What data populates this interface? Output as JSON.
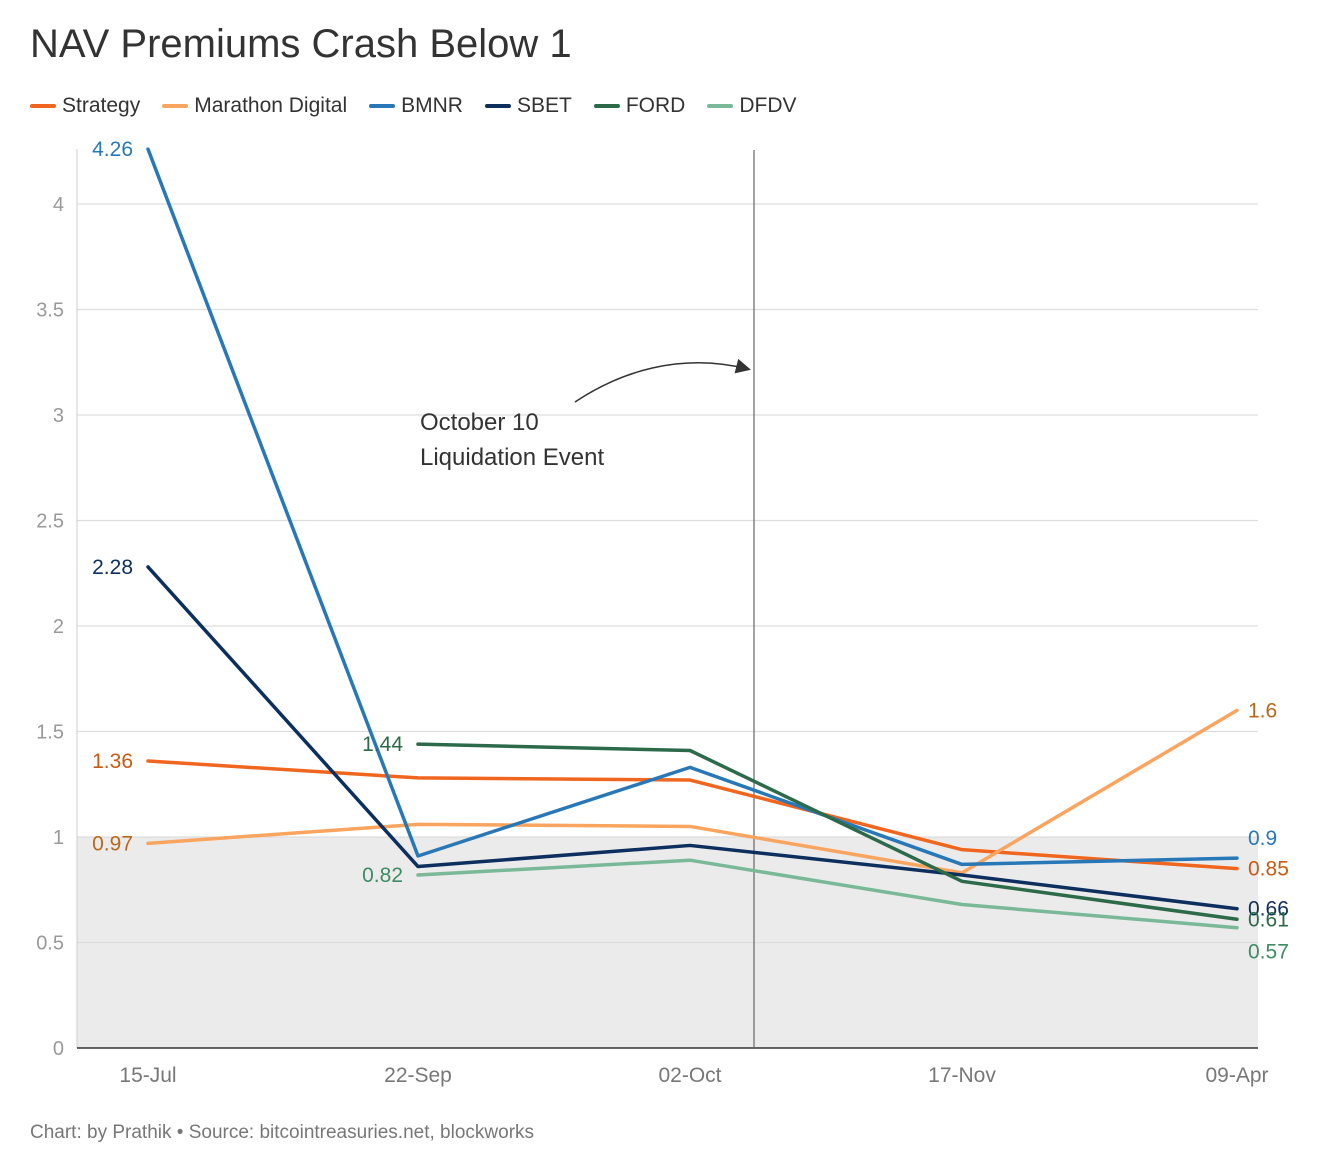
{
  "chart_data": {
    "type": "line",
    "title": "NAV Premiums Crash Below 1",
    "categories": [
      "15-Jul",
      "22-Sep",
      "02-Oct",
      "17-Nov",
      "09-Apr"
    ],
    "ylim": [
      0,
      4.26
    ],
    "yticks": [
      "0",
      "0.5",
      "1",
      "1.5",
      "2",
      "2.5",
      "3",
      "3.5",
      "4"
    ],
    "series": [
      {
        "name": "Strategy",
        "color": "#f0661f",
        "values": [
          1.36,
          1.28,
          1.27,
          0.94,
          0.85
        ],
        "labels": [
          "1.36",
          null,
          null,
          null,
          "0.85"
        ],
        "labelColor": "#c85a13"
      },
      {
        "name": "Marathon Digital",
        "color": "#f9a55f",
        "values": [
          0.97,
          1.06,
          1.05,
          0.83,
          1.6
        ],
        "labels": [
          "0.97",
          null,
          null,
          null,
          "1.6"
        ],
        "labelColor": "#b8681c"
      },
      {
        "name": "BMNR",
        "color": "#2878b8",
        "values": [
          4.26,
          0.91,
          1.33,
          0.87,
          0.9
        ],
        "labels": [
          "4.26",
          null,
          null,
          null,
          "0.9"
        ],
        "labelColor": "#2878b8"
      },
      {
        "name": "SBET",
        "color": "#0c2f5e",
        "values": [
          2.28,
          0.86,
          0.96,
          0.82,
          0.66
        ],
        "labels": [
          "2.28",
          null,
          null,
          null,
          "0.66"
        ],
        "labelColor": "#0c2f5e"
      },
      {
        "name": "FORD",
        "color": "#2d6a4a",
        "values": [
          null,
          1.44,
          1.41,
          0.79,
          0.61
        ],
        "labels": [
          null,
          "1.44",
          null,
          null,
          "0.61"
        ],
        "labelColor": "#2d6a4a"
      },
      {
        "name": "DFDV",
        "color": "#7ab998",
        "values": [
          null,
          0.82,
          0.89,
          0.68,
          0.57
        ],
        "labels": [
          null,
          "0.82",
          null,
          null,
          "0.57"
        ],
        "labelColor": "#3f8b64"
      }
    ],
    "shaded_region": {
      "from": 0,
      "to": 1,
      "color": "#ebebeb"
    },
    "event_line": {
      "position_between": [
        "02-Oct",
        "17-Nov"
      ],
      "label_line1": "October 10",
      "label_line2": "Liquidation Event"
    }
  },
  "footer": "Chart: by Prathik • Source: bitcointreasuries.net, blockworks"
}
